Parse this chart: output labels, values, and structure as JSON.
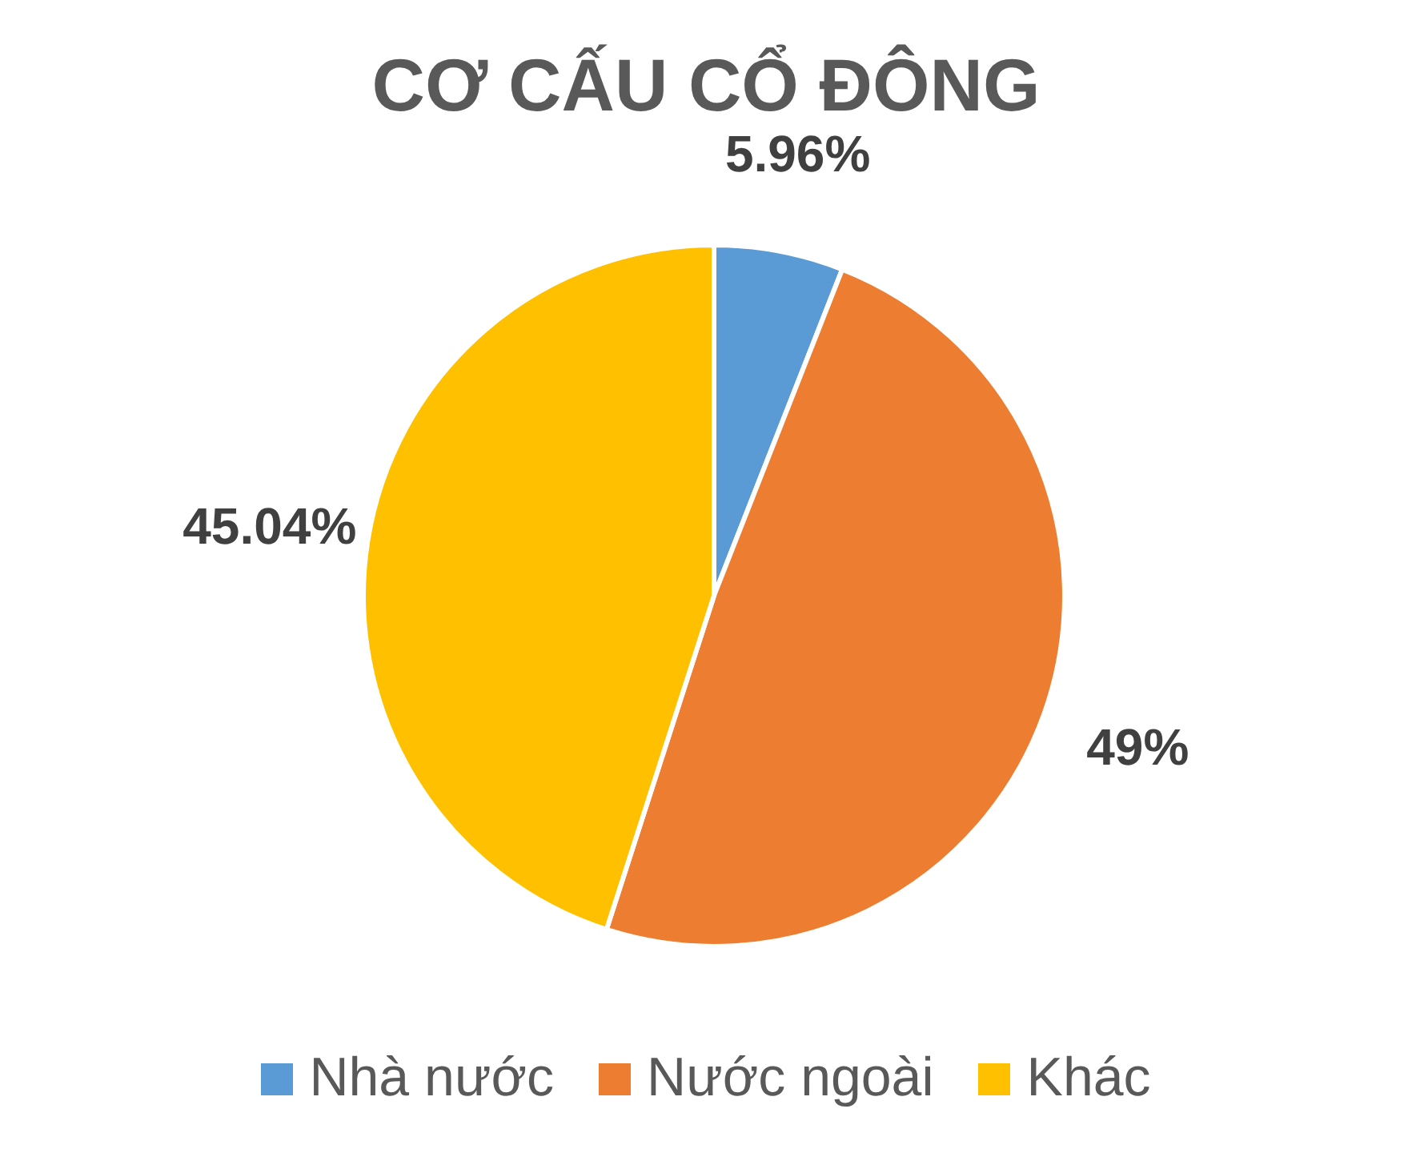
{
  "chart_data": {
    "type": "pie",
    "title": "CƠ CẤU CỔ ĐÔNG",
    "categories": [
      "Nhà nước",
      "Nước ngoài",
      "Khác"
    ],
    "values": [
      5.96,
      49,
      45.04
    ],
    "colors": [
      "#5b9bd5",
      "#ed7d31",
      "#ffc000"
    ],
    "value_labels": [
      "5.96%",
      "49%",
      "45.04%"
    ],
    "legend": "bottom"
  }
}
